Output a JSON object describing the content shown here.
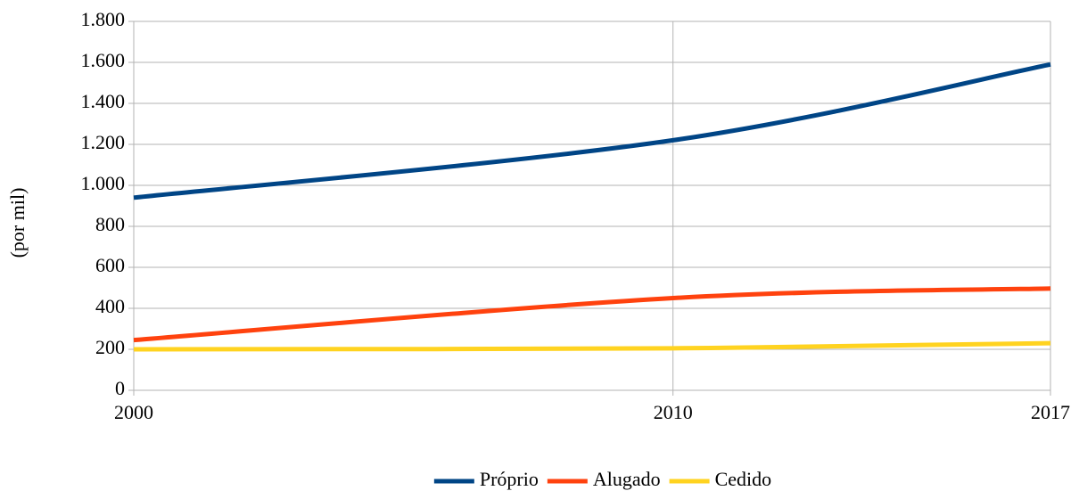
{
  "chart_data": {
    "type": "line",
    "y_label": "(por mil)",
    "x": [
      2000,
      2010,
      2017
    ],
    "series": [
      {
        "name": "Próprio",
        "color": "#004586",
        "values": [
          940,
          1220,
          1590
        ]
      },
      {
        "name": "Alugado",
        "color": "#ff420e",
        "values": [
          245,
          450,
          497
        ]
      },
      {
        "name": "Cedido",
        "color": "#ffd320",
        "values": [
          200,
          205,
          230
        ]
      }
    ],
    "xlim": [
      2000,
      2017
    ],
    "xticks": [
      2000,
      2010,
      2017
    ],
    "ylim": [
      0,
      1800
    ],
    "yticks": [
      0,
      200,
      400,
      600,
      800,
      {
        "value": 1000,
        "label": "1.000"
      },
      {
        "value": 1200,
        "label": "1.200"
      },
      {
        "value": 1400,
        "label": "1.400"
      },
      {
        "value": 1600,
        "label": "1.600"
      },
      {
        "value": 1800,
        "label": "1.800"
      }
    ],
    "grid": true,
    "smooth": true,
    "legend": "bottom"
  }
}
